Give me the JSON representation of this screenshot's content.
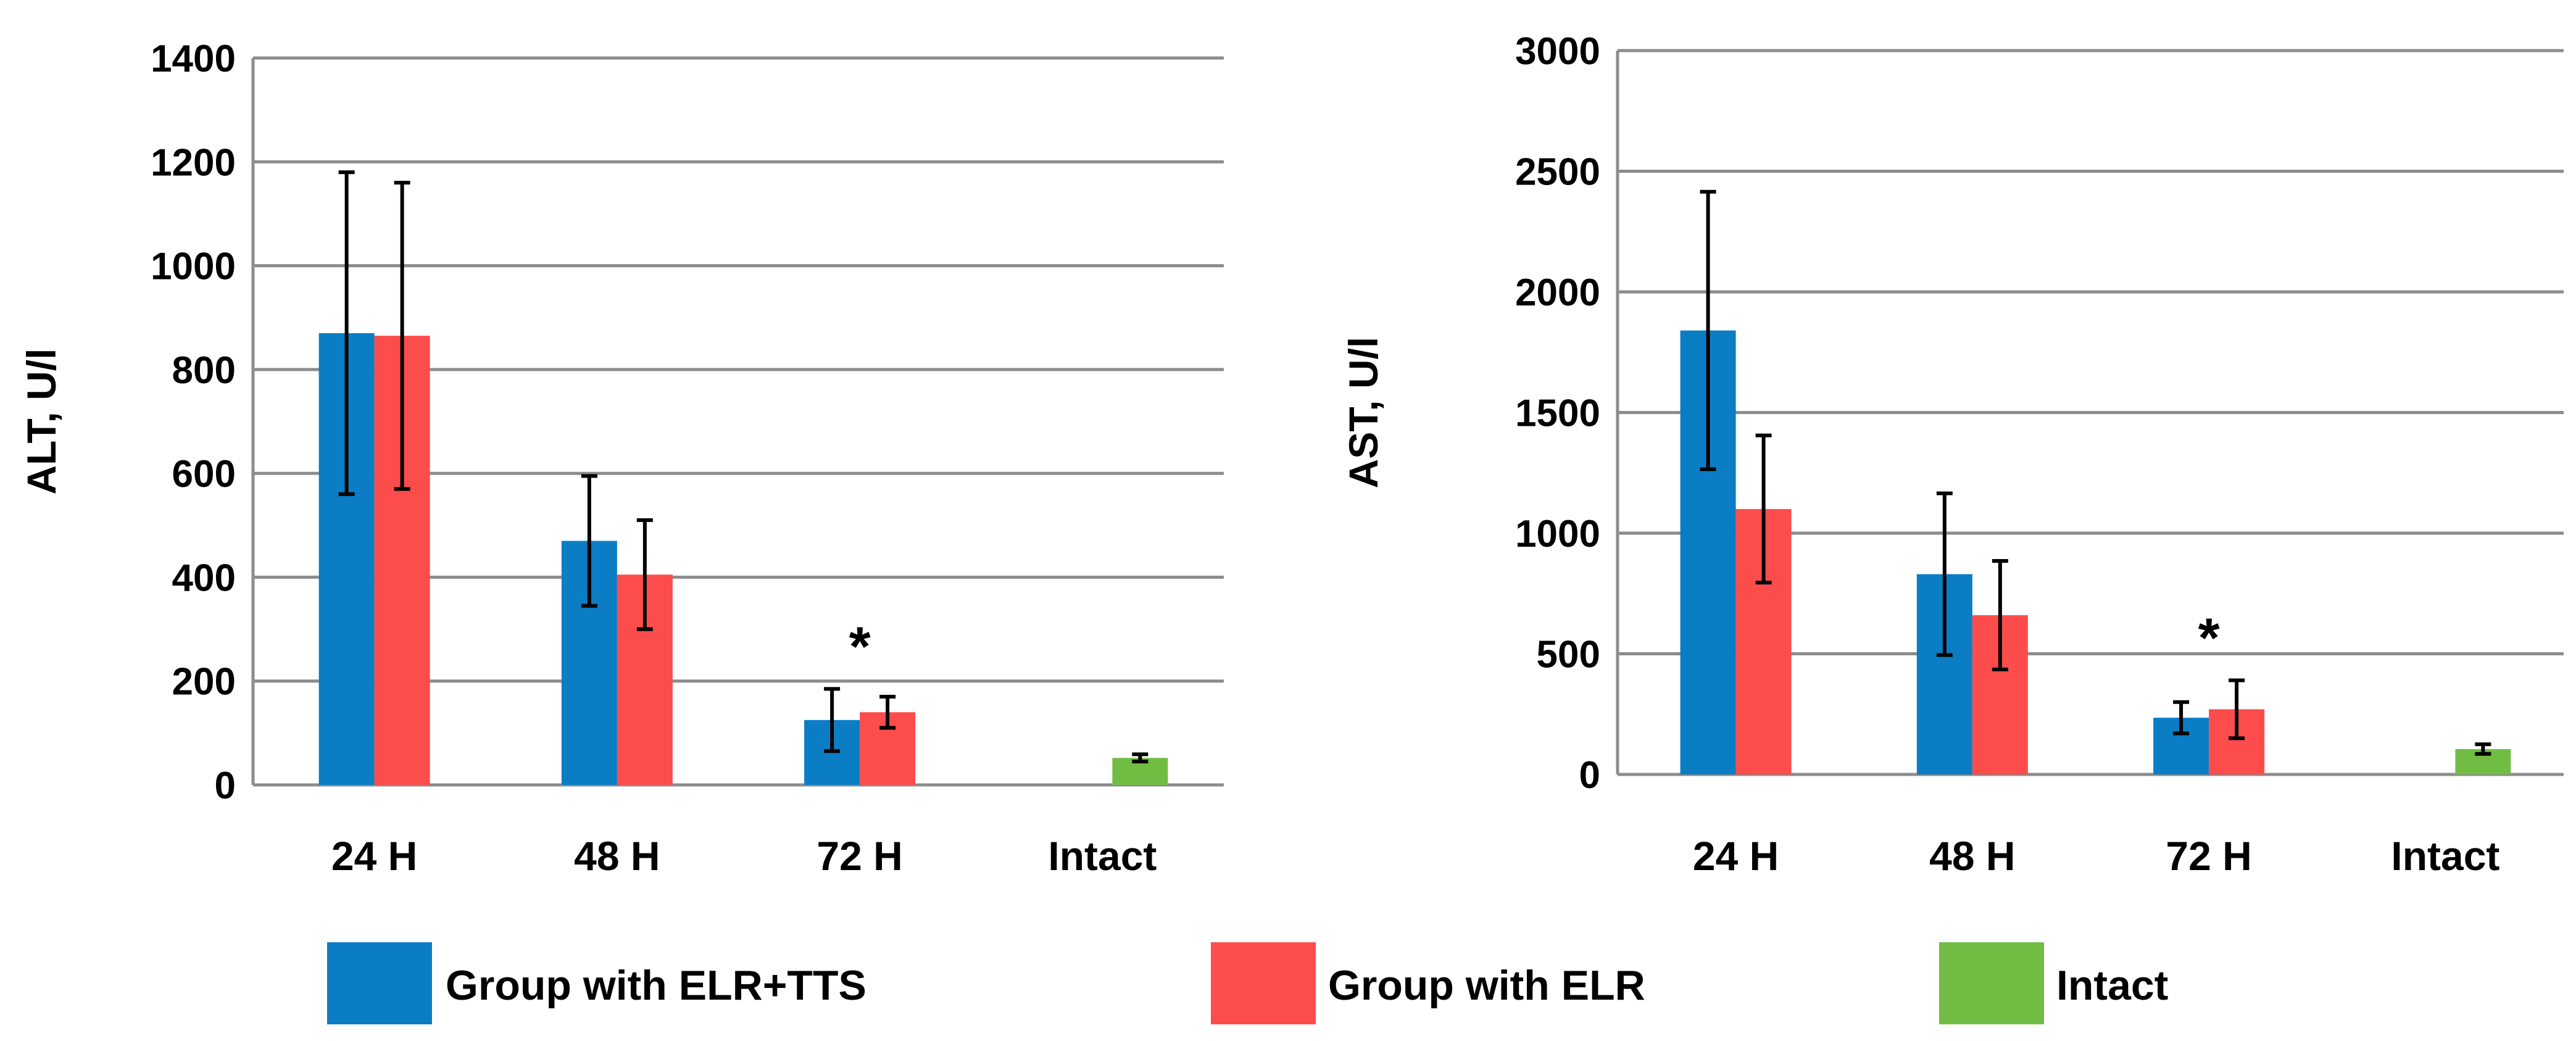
{
  "chart_data": [
    {
      "type": "bar",
      "title": "",
      "xlabel": "",
      "ylabel": "ALT, U/l",
      "ylim": [
        0,
        1400
      ],
      "yticks": [
        0,
        200,
        400,
        600,
        800,
        1000,
        1200,
        1400
      ],
      "yticklabels": [
        "0",
        "200",
        "400",
        "600",
        "800",
        "1000",
        "1200",
        "1400"
      ],
      "grid": true,
      "categories": [
        "24 H",
        "48 H",
        "72 H",
        "Intact"
      ],
      "series": [
        {
          "name": "Group with ELR+TTS",
          "color": "#0b7dc4",
          "values": [
            870,
            470,
            125,
            null
          ],
          "errors": [
            310,
            125,
            60,
            null
          ]
        },
        {
          "name": "Group with ELR",
          "color": "#fd4c4c",
          "values": [
            865,
            405,
            140,
            null
          ],
          "errors": [
            295,
            105,
            30,
            null
          ]
        },
        {
          "name": "Intact",
          "color": "#71bd44",
          "values": [
            null,
            null,
            null,
            52
          ],
          "errors": [
            null,
            null,
            null,
            7
          ]
        }
      ],
      "annotations": [
        {
          "text": "*",
          "category": "72 H"
        }
      ]
    },
    {
      "type": "bar",
      "title": "",
      "xlabel": "",
      "ylabel": "AST, U/l",
      "ylim": [
        0,
        3000
      ],
      "yticks": [
        0,
        500,
        1000,
        1500,
        2000,
        2500,
        3000
      ],
      "yticklabels": [
        "0",
        "500",
        "1000",
        "1500",
        "2000",
        "2500",
        "3000"
      ],
      "grid": true,
      "categories": [
        "24 H",
        "48 H",
        "72 H",
        "Intact"
      ],
      "series": [
        {
          "name": "Group with ELR+TTS",
          "color": "#0b7dc4",
          "values": [
            1840,
            830,
            235,
            null
          ],
          "errors": [
            575,
            335,
            65,
            null
          ]
        },
        {
          "name": "Group with ELR",
          "color": "#fd4c4c",
          "values": [
            1100,
            660,
            270,
            null
          ],
          "errors": [
            305,
            225,
            120,
            null
          ]
        },
        {
          "name": "Intact",
          "color": "#71bd44",
          "values": [
            null,
            null,
            null,
            105
          ],
          "errors": [
            null,
            null,
            null,
            20
          ]
        }
      ],
      "annotations": [
        {
          "text": "*",
          "category": "72 H"
        }
      ]
    }
  ],
  "legend": {
    "items": [
      {
        "label": "Group with ELR+TTS",
        "color": "#0b7dc4"
      },
      {
        "label": "Group with ELR",
        "color": "#fd4c4c"
      },
      {
        "label": "Intact",
        "color": "#71bd44"
      }
    ]
  }
}
